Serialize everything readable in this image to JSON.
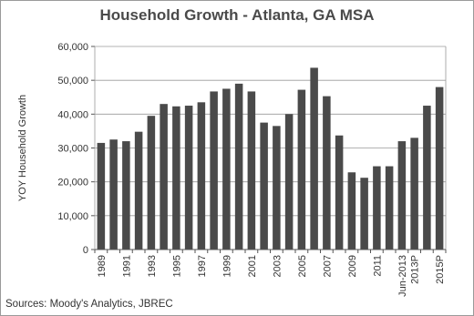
{
  "chart_data": {
    "type": "bar",
    "title": "Household Growth - Atlanta, GA MSA",
    "xlabel": "",
    "ylabel": "YOY Household Growth",
    "ylim": [
      0,
      60000
    ],
    "yticks": [
      "0",
      "10,000",
      "20,000",
      "30,000",
      "40,000",
      "50,000",
      "60,000"
    ],
    "grid": true,
    "legend": "none",
    "bar_color": "#4a4a4a",
    "grid_color": "#9a9a9a",
    "categories": [
      "1989",
      "1990",
      "1991",
      "1992",
      "1993",
      "1994",
      "1995",
      "1996",
      "1997",
      "1998",
      "1999",
      "2000",
      "2001",
      "2002",
      "2003",
      "2004",
      "2005",
      "2006",
      "2007",
      "2008",
      "2009",
      "2010",
      "2011",
      "2012",
      "Jun-2013",
      "2013P",
      "2014P",
      "2015P"
    ],
    "values": [
      31500,
      32500,
      32000,
      34800,
      39500,
      43000,
      42300,
      42500,
      43500,
      46700,
      47500,
      49000,
      46700,
      37500,
      36500,
      40000,
      47200,
      53700,
      45300,
      33700,
      22800,
      21200,
      24600,
      24600,
      32000,
      33000,
      42500,
      48000
    ],
    "x_tick_labels": [
      "1989",
      "1991",
      "1993",
      "1995",
      "1997",
      "1999",
      "2001",
      "2003",
      "2005",
      "2007",
      "2009",
      "2011",
      "Jun-2013",
      "2013P",
      "2015P"
    ],
    "x_tick_indices": [
      0,
      2,
      4,
      6,
      8,
      10,
      12,
      14,
      16,
      18,
      20,
      22,
      24,
      25,
      27
    ]
  },
  "source_note": "Sources: Moody's Analytics, JBREC"
}
